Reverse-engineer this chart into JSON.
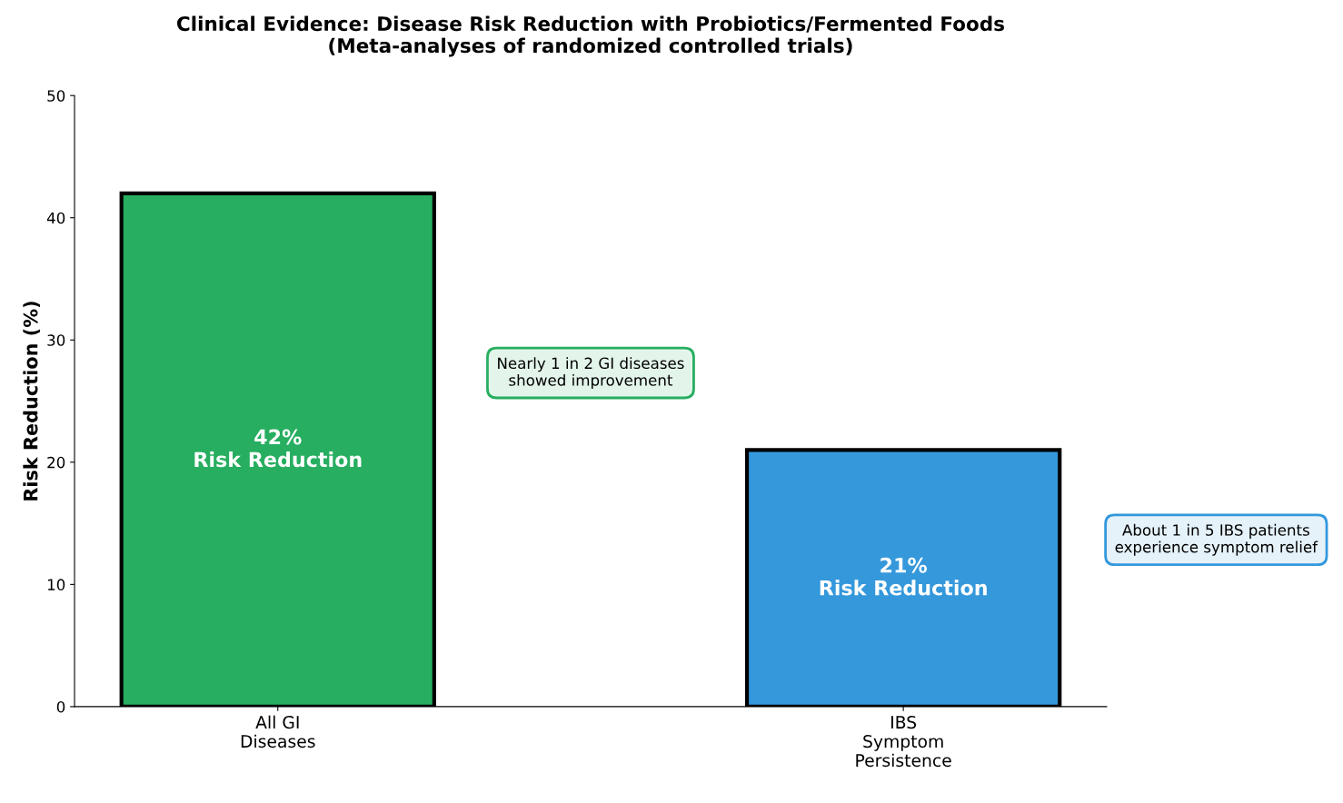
{
  "chart_data": {
    "type": "bar",
    "title": "Clinical Evidence: Disease Risk Reduction with Probiotics/Fermented Foods\n(Meta-analyses of randomized controlled trials)",
    "ylabel": "Risk Reduction (%)",
    "categories": [
      "All GI\nDiseases",
      "IBS\nSymptom\nPersistence"
    ],
    "values": [
      42,
      21
    ],
    "colors": [
      "#27ae60",
      "#3498db"
    ],
    "value_labels": [
      "42%\nRisk Reduction",
      "21%\nRisk Reduction"
    ],
    "annotations": [
      "Nearly 1 in 2 GI diseases\nshowed improvement",
      "About 1 in 5 IBS patients\nexperience symptom relief"
    ],
    "ylim": [
      0,
      50
    ],
    "yticks": [
      0,
      10,
      20,
      30,
      40,
      50
    ],
    "grid": false,
    "legend": false
  }
}
